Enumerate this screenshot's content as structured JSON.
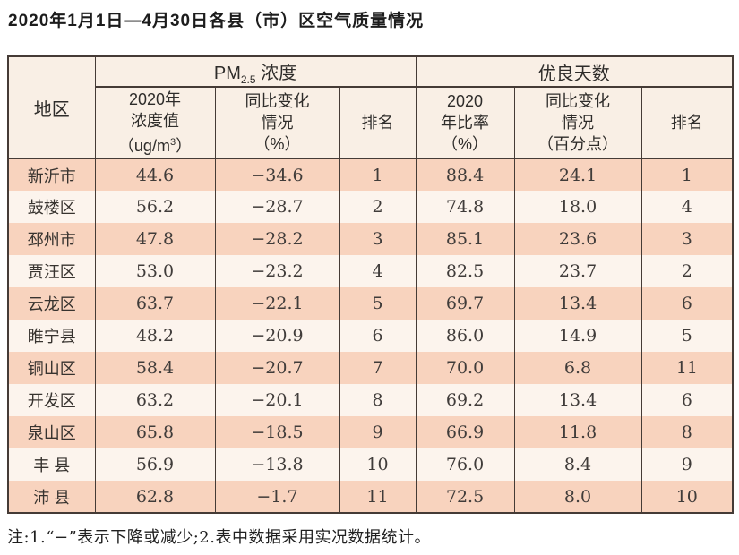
{
  "title": "2020年1月1日—4月30日各县（市）区空气质量情况",
  "table": {
    "header": {
      "region": "地区",
      "pm_group": {
        "prefix": "PM",
        "sub": "2.5",
        "suffix": " 浓度"
      },
      "good_group": "优良天数",
      "pm_value_col": {
        "line1": "2020年",
        "line2": "浓度值",
        "unit_open": "（ug/m",
        "unit_sup": "3",
        "unit_close": "）"
      },
      "pm_change_col": {
        "line1": "同比变化",
        "line2": "情况",
        "line3": "（%）"
      },
      "pm_rank_col": "排名",
      "good_rate_col": {
        "line1": "2020",
        "line2": "年比率",
        "line3": "（%）"
      },
      "good_change_col": {
        "line1": "同比变化",
        "line2": "情况",
        "line3": "（百分点）"
      },
      "good_rank_col": "排名"
    },
    "rows": [
      {
        "region": "新沂市",
        "pm_value": "44.6",
        "pm_change": "−34.6",
        "pm_rank": "1",
        "good_rate": "88.4",
        "good_change": "24.1",
        "good_rank": "1"
      },
      {
        "region": "鼓楼区",
        "pm_value": "56.2",
        "pm_change": "−28.7",
        "pm_rank": "2",
        "good_rate": "74.8",
        "good_change": "18.0",
        "good_rank": "4"
      },
      {
        "region": "邳州市",
        "pm_value": "47.8",
        "pm_change": "−28.2",
        "pm_rank": "3",
        "good_rate": "85.1",
        "good_change": "23.6",
        "good_rank": "3"
      },
      {
        "region": "贾汪区",
        "pm_value": "53.0",
        "pm_change": "−23.2",
        "pm_rank": "4",
        "good_rate": "82.5",
        "good_change": "23.7",
        "good_rank": "2"
      },
      {
        "region": "云龙区",
        "pm_value": "63.7",
        "pm_change": "−22.1",
        "pm_rank": "5",
        "good_rate": "69.7",
        "good_change": "13.4",
        "good_rank": "6"
      },
      {
        "region": "睢宁县",
        "pm_value": "48.2",
        "pm_change": "−20.9",
        "pm_rank": "6",
        "good_rate": "86.0",
        "good_change": "14.9",
        "good_rank": "5"
      },
      {
        "region": "铜山区",
        "pm_value": "58.4",
        "pm_change": "−20.7",
        "pm_rank": "7",
        "good_rate": "70.0",
        "good_change": "6.8",
        "good_rank": "11"
      },
      {
        "region": "开发区",
        "pm_value": "63.2",
        "pm_change": "−20.1",
        "pm_rank": "8",
        "good_rate": "69.2",
        "good_change": "13.4",
        "good_rank": "6"
      },
      {
        "region": "泉山区",
        "pm_value": "65.8",
        "pm_change": "−18.5",
        "pm_rank": "9",
        "good_rate": "66.9",
        "good_change": "11.8",
        "good_rank": "8"
      },
      {
        "region": "丰 县",
        "pm_value": "56.9",
        "pm_change": "−13.8",
        "pm_rank": "10",
        "good_rate": "76.0",
        "good_change": "8.4",
        "good_rank": "9"
      },
      {
        "region": "沛 县",
        "pm_value": "62.8",
        "pm_change": "−1.7",
        "pm_rank": "11",
        "good_rate": "72.5",
        "good_change": "8.0",
        "good_rank": "10"
      }
    ]
  },
  "note": "注:1.“−”表示下降或减少;2.表中数据采用实况数据统计。",
  "colors": {
    "row_odd": "#f8d3be",
    "row_even": "#fcf4ed",
    "header_bg": "#f9efe5",
    "border": "#453b36"
  }
}
